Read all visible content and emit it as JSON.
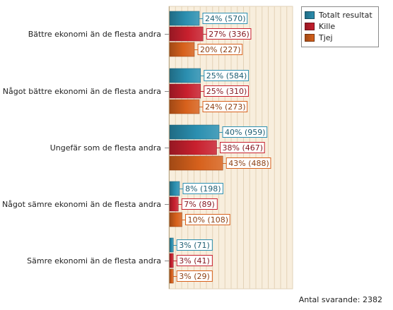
{
  "chart_data": {
    "type": "bar",
    "orientation": "horizontal",
    "categories": [
      "Bättre ekonomi än de flesta andra",
      "Något bättre ekonomi än de flesta andra",
      "Ungefär som de flesta andra",
      "Något sämre ekonomi än de flesta andra",
      "Sämre ekonomi än de flesta andra"
    ],
    "series": [
      {
        "name": "Totalt resultat",
        "color": "#2b8fb0",
        "values": [
          24,
          25,
          40,
          8,
          3
        ],
        "labels": [
          "24% (570)",
          "25% (584)",
          "40% (959)",
          "8% (198)",
          "3% (71)"
        ]
      },
      {
        "name": "Kille",
        "color": "#c8202e",
        "values": [
          27,
          25,
          38,
          7,
          3
        ],
        "labels": [
          "27% (336)",
          "25% (310)",
          "38% (467)",
          "7% (89)",
          "3% (41)"
        ]
      },
      {
        "name": "Tjej",
        "color": "#d7611c",
        "values": [
          20,
          24,
          43,
          10,
          3
        ],
        "labels": [
          "20% (227)",
          "24% (273)",
          "43% (488)",
          "10% (108)",
          "3% (29)"
        ]
      }
    ],
    "xlim": [
      0,
      100
    ],
    "grid": true,
    "legend": "top-right",
    "footnote": "Antal svarande: 2382"
  }
}
